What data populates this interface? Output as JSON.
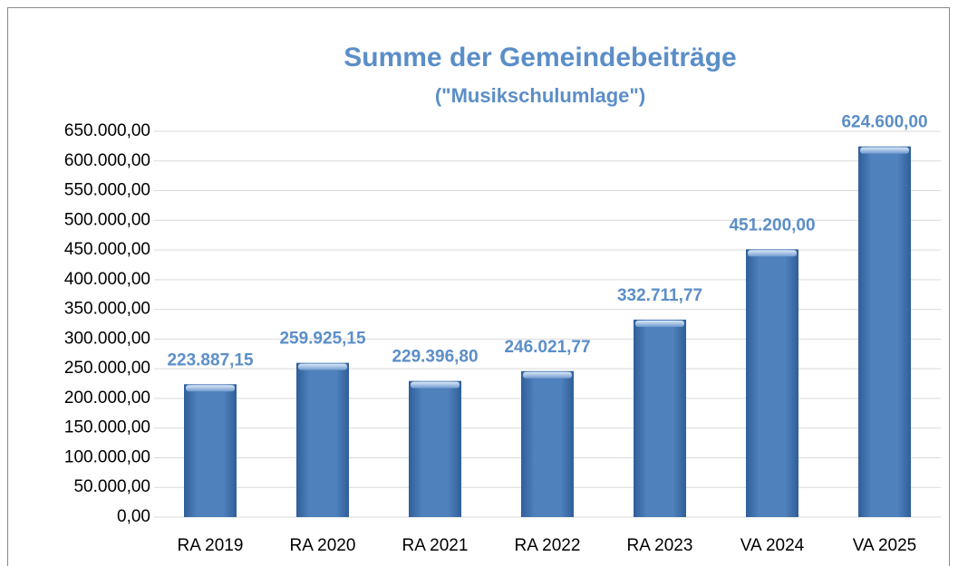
{
  "chart_data": {
    "type": "bar",
    "title": "Summe der Gemeindebeiträge",
    "subtitle": "(\"Musikschulumlage\")",
    "categories": [
      "RA 2019",
      "RA 2020",
      "RA 2021",
      "RA 2022",
      "RA 2023",
      "VA 2024",
      "VA 2025"
    ],
    "values": [
      223887.15,
      259925.15,
      229396.8,
      246021.77,
      332711.77,
      451200.0,
      624600.0
    ],
    "value_labels": [
      "223.887,15",
      "259.925,15",
      "229.396,80",
      "246.021,77",
      "332.711,77",
      "451.200,00",
      "624.600,00"
    ],
    "color": "#4f81bd",
    "ylim": [
      0,
      650000
    ],
    "yticks": [
      {
        "value": 0,
        "label": "0,00"
      },
      {
        "value": 50000,
        "label": "50.000,00"
      },
      {
        "value": 100000,
        "label": "100.000,00"
      },
      {
        "value": 150000,
        "label": "150.000,00"
      },
      {
        "value": 200000,
        "label": "200.000,00"
      },
      {
        "value": 250000,
        "label": "250.000,00"
      },
      {
        "value": 300000,
        "label": "300.000,00"
      },
      {
        "value": 350000,
        "label": "350.000,00"
      },
      {
        "value": 400000,
        "label": "400.000,00"
      },
      {
        "value": 450000,
        "label": "450.000,00"
      },
      {
        "value": 500000,
        "label": "500.000,00"
      },
      {
        "value": 550000,
        "label": "550.000,00"
      },
      {
        "value": 600000,
        "label": "600.000,00"
      },
      {
        "value": 650000,
        "label": "650.000,00"
      }
    ],
    "grid": true
  }
}
